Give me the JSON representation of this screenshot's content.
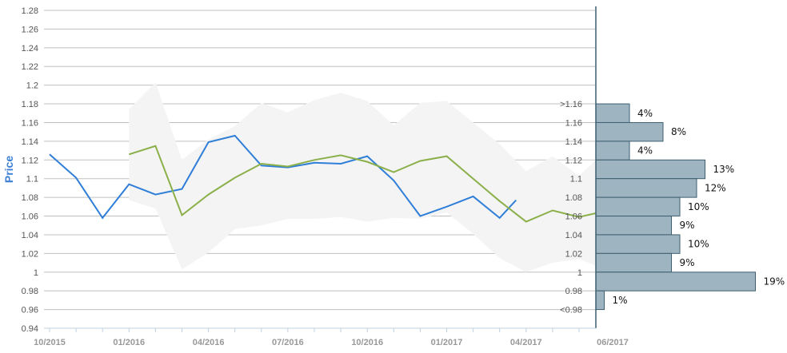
{
  "chart_data": {
    "type": "line",
    "ylabel": "Price",
    "ylim": [
      0.94,
      1.28
    ],
    "yticks": [
      "0.94",
      "0.96",
      "0.98",
      "1",
      "1.02",
      "1.04",
      "1.06",
      "1.08",
      "1.1",
      "1.12",
      "1.14",
      "1.16",
      "1.18",
      "1.2",
      "1.22",
      "1.24",
      "1.26",
      "1.28"
    ],
    "xtick_labels": [
      "10/2015",
      "01/2016",
      "04/2016",
      "07/2016",
      "10/2016",
      "01/2017",
      "04/2017",
      "06/2017"
    ],
    "grid": true,
    "colors": {
      "blue": "#2f7ed8",
      "green": "#8bb04a",
      "band": "#f4f4f4",
      "hist": "#9fb4c1",
      "hist_border": "#3d5f70"
    },
    "series": [
      {
        "color": "blue",
        "points": [
          [
            "10/2015",
            1.126
          ],
          [
            "11/2015",
            1.101
          ],
          [
            "12/2015",
            1.058
          ],
          [
            "01/2016",
            1.094
          ],
          [
            "02/2016",
            1.083
          ],
          [
            "03/2016",
            1.089
          ],
          [
            "04/2016",
            1.139
          ],
          [
            "05/2016",
            1.146
          ],
          [
            "06/2016",
            1.114
          ],
          [
            "07/2016",
            1.112
          ],
          [
            "08/2016",
            1.117
          ],
          [
            "09/2016",
            1.116
          ],
          [
            "10/2016",
            1.124
          ],
          [
            "11/2016",
            1.098
          ],
          [
            "12/2016",
            1.06
          ],
          [
            "01/2017",
            1.07
          ],
          [
            "02/2017",
            1.081
          ],
          [
            "03/2017",
            1.058
          ],
          [
            "03/2017+",
            1.077
          ]
        ]
      },
      {
        "color": "green",
        "points": [
          [
            "01/2016",
            1.126
          ],
          [
            "02/2016",
            1.135
          ],
          [
            "03/2016",
            1.061
          ],
          [
            "04/2016",
            1.083
          ],
          [
            "05/2016",
            1.101
          ],
          [
            "06/2016",
            1.116
          ],
          [
            "07/2016",
            1.113
          ],
          [
            "08/2016",
            1.12
          ],
          [
            "09/2016",
            1.125
          ],
          [
            "10/2016",
            1.118
          ],
          [
            "11/2016",
            1.107
          ],
          [
            "12/2016",
            1.119
          ],
          [
            "01/2017",
            1.124
          ],
          [
            "02/2017",
            1.1
          ],
          [
            "03/2017",
            1.076
          ],
          [
            "04/2017",
            1.054
          ],
          [
            "05/2017",
            1.066
          ],
          [
            "06/2017",
            1.059
          ],
          [
            "06/2017+",
            1.063
          ]
        ]
      }
    ],
    "band": {
      "upper": [
        1.174,
        1.203,
        1.12,
        1.142,
        1.156,
        1.181,
        1.171,
        1.184,
        1.192,
        1.183,
        1.157,
        1.181,
        1.183,
        1.16,
        1.137,
        1.108,
        1.124,
        1.103,
        1.12
      ],
      "lower": [
        1.077,
        1.068,
        1.003,
        1.021,
        1.046,
        1.05,
        1.057,
        1.057,
        1.059,
        1.054,
        1.058,
        1.057,
        1.064,
        1.041,
        1.015,
        1.0,
        1.01,
        1.014,
        1.007
      ]
    },
    "histogram": {
      "bins": [
        ">1.16",
        "1.16",
        "1.14",
        "1.12",
        "1.1",
        "1.08",
        "1.06",
        "1.04",
        "1.02",
        "1",
        "0.98",
        "<0.98"
      ],
      "values_pct": [
        4,
        8,
        4,
        13,
        12,
        10,
        9,
        10,
        9,
        19,
        1
      ],
      "labels": [
        "4%",
        "8%",
        "4%",
        "13%",
        "12%",
        "10%",
        "9%",
        "10%",
        "9%",
        "19%",
        "1%"
      ]
    }
  }
}
